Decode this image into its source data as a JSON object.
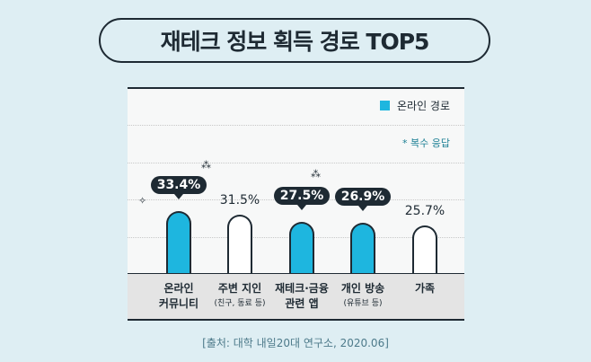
{
  "title": "재테크 정보 획득 경로 TOP5",
  "legend": "온라인 경로",
  "note": "* 복수 응답",
  "source": "[출처: 대학 내일20대 연구소, 2020.06]",
  "colors": {
    "online": "#1eb6df",
    "other": "#ffffff",
    "dark": "#1e2a33"
  },
  "chart_data": {
    "type": "bar",
    "title": "재테크 정보 획득 경로 TOP5",
    "categories": [
      "온라인 커뮤니티",
      "주변 지인 (친구, 동료 등)",
      "재테크·금융 관련 앱",
      "개인 방송 (유튜브 등)",
      "가족"
    ],
    "values": [
      33.4,
      31.5,
      27.5,
      26.9,
      25.7
    ],
    "labels": [
      "33.4%",
      "31.5%",
      "27.5%",
      "26.9%",
      "25.7%"
    ],
    "online": [
      true,
      false,
      true,
      true,
      false
    ],
    "cat_lines": [
      [
        "온라인",
        "커뮤니티",
        ""
      ],
      [
        "주변 지인",
        "",
        "(친구, 동료 등)"
      ],
      [
        "재테크·금융",
        "관련 앱",
        ""
      ],
      [
        "개인 방송",
        "",
        "(유튜브 등)"
      ],
      [
        "가족",
        "",
        ""
      ]
    ],
    "legend": [
      "온라인 경로"
    ],
    "legend_position": "top-right",
    "unit": "%",
    "grid": true
  }
}
